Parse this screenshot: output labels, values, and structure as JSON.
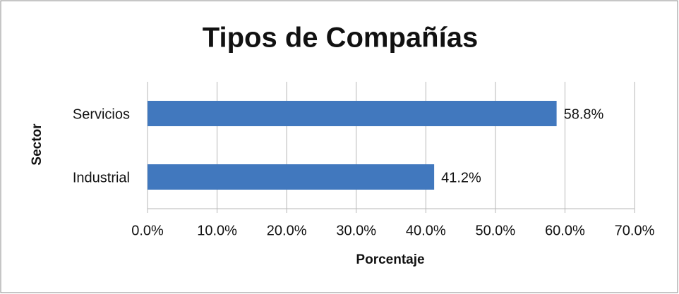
{
  "chart_data": {
    "type": "bar",
    "orientation": "horizontal",
    "title": "Tipos de Compañías",
    "x_label": "Porcentaje",
    "y_label": "Sector",
    "categories": [
      "Servicios",
      "Industrial"
    ],
    "values": [
      58.8,
      41.2
    ],
    "value_labels": [
      "58.8%",
      "41.2%"
    ],
    "color": "#4178be",
    "xlim": [
      0,
      70
    ],
    "xticks": [
      {
        "value": 0,
        "label": "0.0%"
      },
      {
        "value": 10,
        "label": "10.0%"
      },
      {
        "value": 20,
        "label": "20.0%"
      },
      {
        "value": 30,
        "label": "30.0%"
      },
      {
        "value": 40,
        "label": "40.0%"
      },
      {
        "value": 50,
        "label": "50.0%"
      },
      {
        "value": 60,
        "label": "60.0%"
      },
      {
        "value": 70,
        "label": "70.0%"
      }
    ],
    "grid": true
  }
}
